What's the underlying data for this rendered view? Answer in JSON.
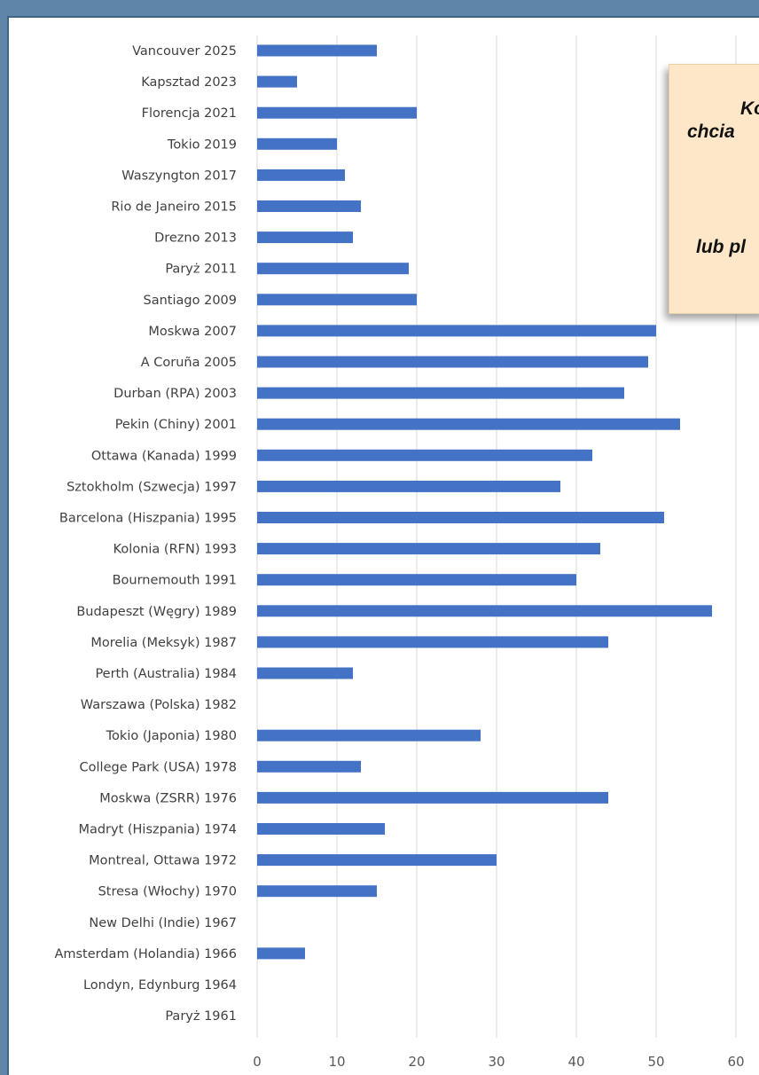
{
  "chart_data": {
    "type": "bar",
    "orientation": "horizontal",
    "categories": [
      "Vancouver 2025",
      "Kapsztad 2023",
      "Florencja 2021",
      "Tokio 2019",
      "Waszyngton 2017",
      "Rio de Janeiro 2015",
      "Drezno 2013",
      "Paryż 2011",
      "Santiago 2009",
      "Moskwa 2007",
      "A Coruña  2005",
      "Durban (RPA) 2003",
      "Pekin (Chiny)  2001",
      "Ottawa (Kanada) 1999",
      "Sztokholm (Szwecja) 1997",
      "Barcelona (Hiszpania) 1995",
      "Kolonia (RFN) 1993",
      "Bournemouth 1991",
      "Budapeszt (Węgry) 1989",
      "Morelia (Meksyk) 1987",
      "Perth (Australia) 1984",
      "Warszawa (Polska) 1982",
      "Tokio (Japonia) 1980",
      "College Park (USA) 1978",
      "Moskwa (ZSRR) 1976",
      "Madryt (Hiszpania) 1974",
      "Montreal, Ottawa 1972",
      "Stresa (Włochy) 1970",
      "New Delhi (Indie) 1967",
      "Amsterdam (Holandia) 1966",
      "Londyn, Edynburg  1964",
      "Paryż 1961"
    ],
    "values": [
      15,
      5,
      20,
      10,
      11,
      13,
      12,
      19,
      20,
      50,
      49,
      46,
      53,
      42,
      38,
      51,
      43,
      40,
      57,
      44,
      12,
      0,
      28,
      13,
      44,
      16,
      30,
      15,
      0,
      6,
      0,
      0
    ],
    "xlim": [
      0,
      60
    ],
    "xticks": [
      0,
      10,
      20,
      30,
      40,
      50,
      60
    ],
    "bar_color": "#4472c4",
    "grid": "vertical",
    "title": "",
    "xlabel": "",
    "ylabel": ""
  },
  "note": {
    "lines": [
      "Ko",
      "chcia",
      "lub pl"
    ]
  }
}
